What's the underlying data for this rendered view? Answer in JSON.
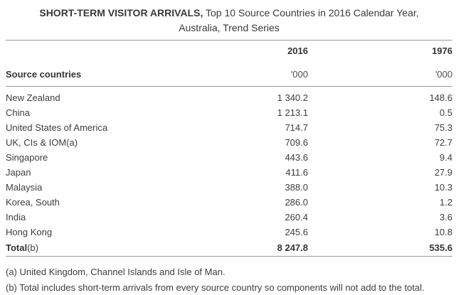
{
  "title": {
    "bold": "SHORT-TERM VISITOR ARRIVALS,",
    "regular": "Top 10 Source Countries in 2016 Calendar Year,",
    "line2": "Australia, Trend Series"
  },
  "table": {
    "row_header": "Source countries",
    "columns": [
      {
        "year": "2016",
        "unit": "'000"
      },
      {
        "year": "1976",
        "unit": "'000"
      }
    ],
    "rows": [
      {
        "name": "New Zealand",
        "v2016": "1 340.2",
        "v1976": "148.6"
      },
      {
        "name": "China",
        "v2016": "1 213.1",
        "v1976": "0.5"
      },
      {
        "name": "United States of America",
        "v2016": "714.7",
        "v1976": "75.3"
      },
      {
        "name": "UK, CIs & IOM(a)",
        "v2016": "709.6",
        "v1976": "72.7"
      },
      {
        "name": "Singapore",
        "v2016": "443.6",
        "v1976": "9.4"
      },
      {
        "name": "Japan",
        "v2016": "411.6",
        "v1976": "27.9"
      },
      {
        "name": "Malaysia",
        "v2016": "388.0",
        "v1976": "10.3"
      },
      {
        "name": "Korea, South",
        "v2016": "286.0",
        "v1976": "1.2"
      },
      {
        "name": "India",
        "v2016": "260.4",
        "v1976": "3.6"
      },
      {
        "name": "Hong Kong",
        "v2016": "245.6",
        "v1976": "10.8"
      }
    ],
    "total": {
      "label_bold": "Total",
      "label_note": "(b)",
      "v2016": "8 247.8",
      "v1976": "535.6"
    }
  },
  "footnotes": [
    "(a) United Kingdom, Channel Islands and Isle of Man.",
    "(b) Total includes short-term arrivals from every source country so components will not add to the total."
  ],
  "colors": {
    "text": "#3d3d3d",
    "heading_text": "#333333",
    "rule": "#9a9a9a",
    "background": "#ffffff"
  },
  "chart_data": {
    "type": "table",
    "title": "SHORT-TERM VISITOR ARRIVALS, Top 10 Source Countries in 2016 Calendar Year, Australia, Trend Series",
    "columns": [
      "Source countries",
      "2016 ('000)",
      "1976 ('000)"
    ],
    "rows": [
      [
        "New Zealand",
        1340.2,
        148.6
      ],
      [
        "China",
        1213.1,
        0.5
      ],
      [
        "United States of America",
        714.7,
        75.3
      ],
      [
        "UK, CIs & IOM(a)",
        709.6,
        72.7
      ],
      [
        "Singapore",
        443.6,
        9.4
      ],
      [
        "Japan",
        411.6,
        27.9
      ],
      [
        "Malaysia",
        388.0,
        10.3
      ],
      [
        "Korea, South",
        286.0,
        1.2
      ],
      [
        "India",
        260.4,
        3.6
      ],
      [
        "Hong Kong",
        245.6,
        10.8
      ],
      [
        "Total(b)",
        8247.8,
        535.6
      ]
    ],
    "notes": [
      "(a) United Kingdom, Channel Islands and Isle of Man.",
      "(b) Total includes short-term arrivals from every source country so components will not add to the total."
    ]
  }
}
